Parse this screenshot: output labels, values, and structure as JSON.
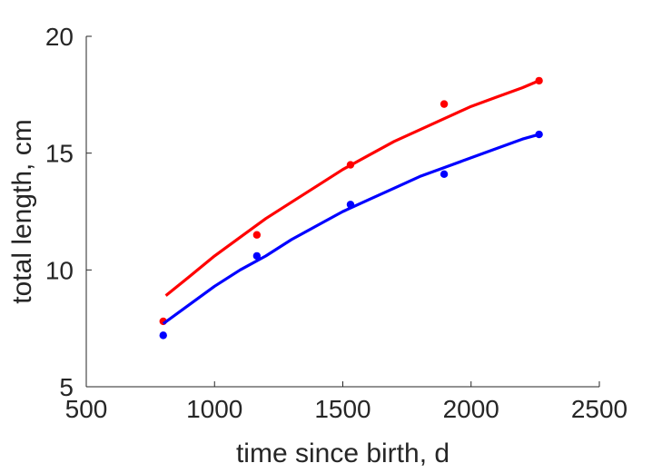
{
  "chart_data": {
    "type": "scatter",
    "xlabel": "time since birth, d",
    "ylabel": "total length, cm",
    "xlim": [
      500,
      2500
    ],
    "ylim": [
      5,
      20
    ],
    "xticks": [
      500,
      1000,
      1500,
      2000,
      2500
    ],
    "yticks": [
      5,
      10,
      15,
      20
    ],
    "xtick_labels": [
      "500",
      "1000",
      "1500",
      "2000",
      "2500"
    ],
    "ytick_labels": [
      "5",
      "10",
      "15",
      "20"
    ],
    "grid": false,
    "axes_box": "left-bottom",
    "series": [
      {
        "color": "#ff0000",
        "points": {
          "x": [
            800,
            1165,
            1530,
            1895,
            2265
          ],
          "y": [
            7.8,
            11.5,
            14.5,
            17.1,
            18.1
          ]
        },
        "fit": {
          "x": [
            810,
            900,
            1000,
            1100,
            1200,
            1300,
            1400,
            1500,
            1600,
            1700,
            1800,
            1900,
            2000,
            2100,
            2200,
            2265
          ],
          "y": [
            8.9,
            9.7,
            10.6,
            11.4,
            12.2,
            12.9,
            13.6,
            14.3,
            14.9,
            15.5,
            16.0,
            16.5,
            17.0,
            17.4,
            17.8,
            18.1
          ]
        }
      },
      {
        "color": "#0000ff",
        "points": {
          "x": [
            800,
            1165,
            1530,
            1895,
            2265
          ],
          "y": [
            7.2,
            10.6,
            12.8,
            14.1,
            15.8
          ]
        },
        "fit": {
          "x": [
            800,
            900,
            1000,
            1100,
            1200,
            1300,
            1400,
            1500,
            1600,
            1700,
            1800,
            1900,
            2000,
            2100,
            2200,
            2265
          ],
          "y": [
            7.7,
            8.5,
            9.3,
            10.0,
            10.6,
            11.3,
            11.9,
            12.5,
            13.0,
            13.5,
            14.0,
            14.4,
            14.8,
            15.2,
            15.6,
            15.8
          ]
        }
      }
    ]
  }
}
